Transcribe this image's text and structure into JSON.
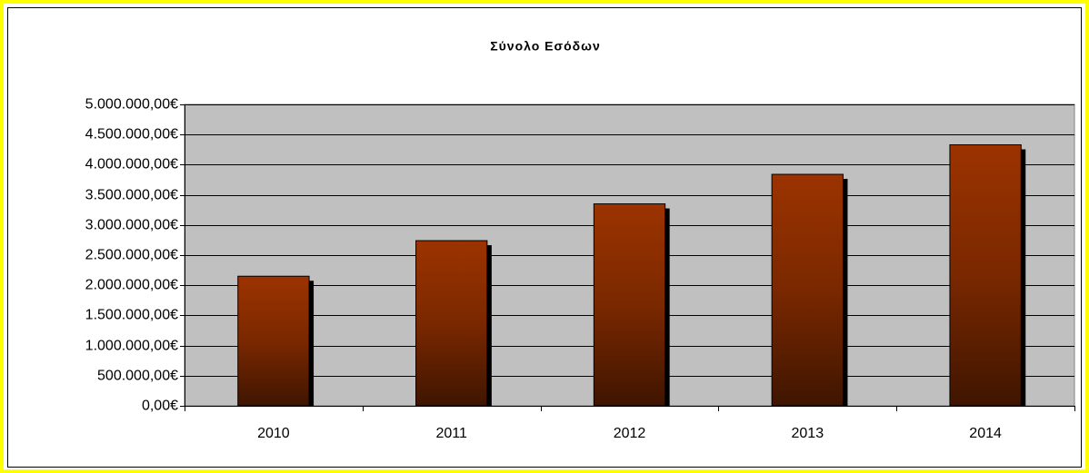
{
  "chart_data": {
    "type": "bar",
    "title": "Σύνολο Εσόδων",
    "categories": [
      "2010",
      "2011",
      "2012",
      "2013",
      "2014"
    ],
    "values": [
      2150000,
      2740000,
      3350000,
      3840000,
      4330000
    ],
    "color": "#993300",
    "ylim": [
      0,
      5000000
    ],
    "yticks": [
      {
        "value": 0,
        "label": "0,00€"
      },
      {
        "value": 500000,
        "label": "500.000,00€"
      },
      {
        "value": 1000000,
        "label": "1.000.000,00€"
      },
      {
        "value": 1500000,
        "label": "1.500.000,00€"
      },
      {
        "value": 2000000,
        "label": "2.000.000,00€"
      },
      {
        "value": 2500000,
        "label": "2.500.000,00€"
      },
      {
        "value": 3000000,
        "label": "3.000.000,00€"
      },
      {
        "value": 3500000,
        "label": "3.500.000,00€"
      },
      {
        "value": 4000000,
        "label": "4.000.000,00€"
      },
      {
        "value": 4500000,
        "label": "4.500.000,00€"
      },
      {
        "value": 5000000,
        "label": "5.000.000,00€"
      }
    ],
    "grid": true
  }
}
